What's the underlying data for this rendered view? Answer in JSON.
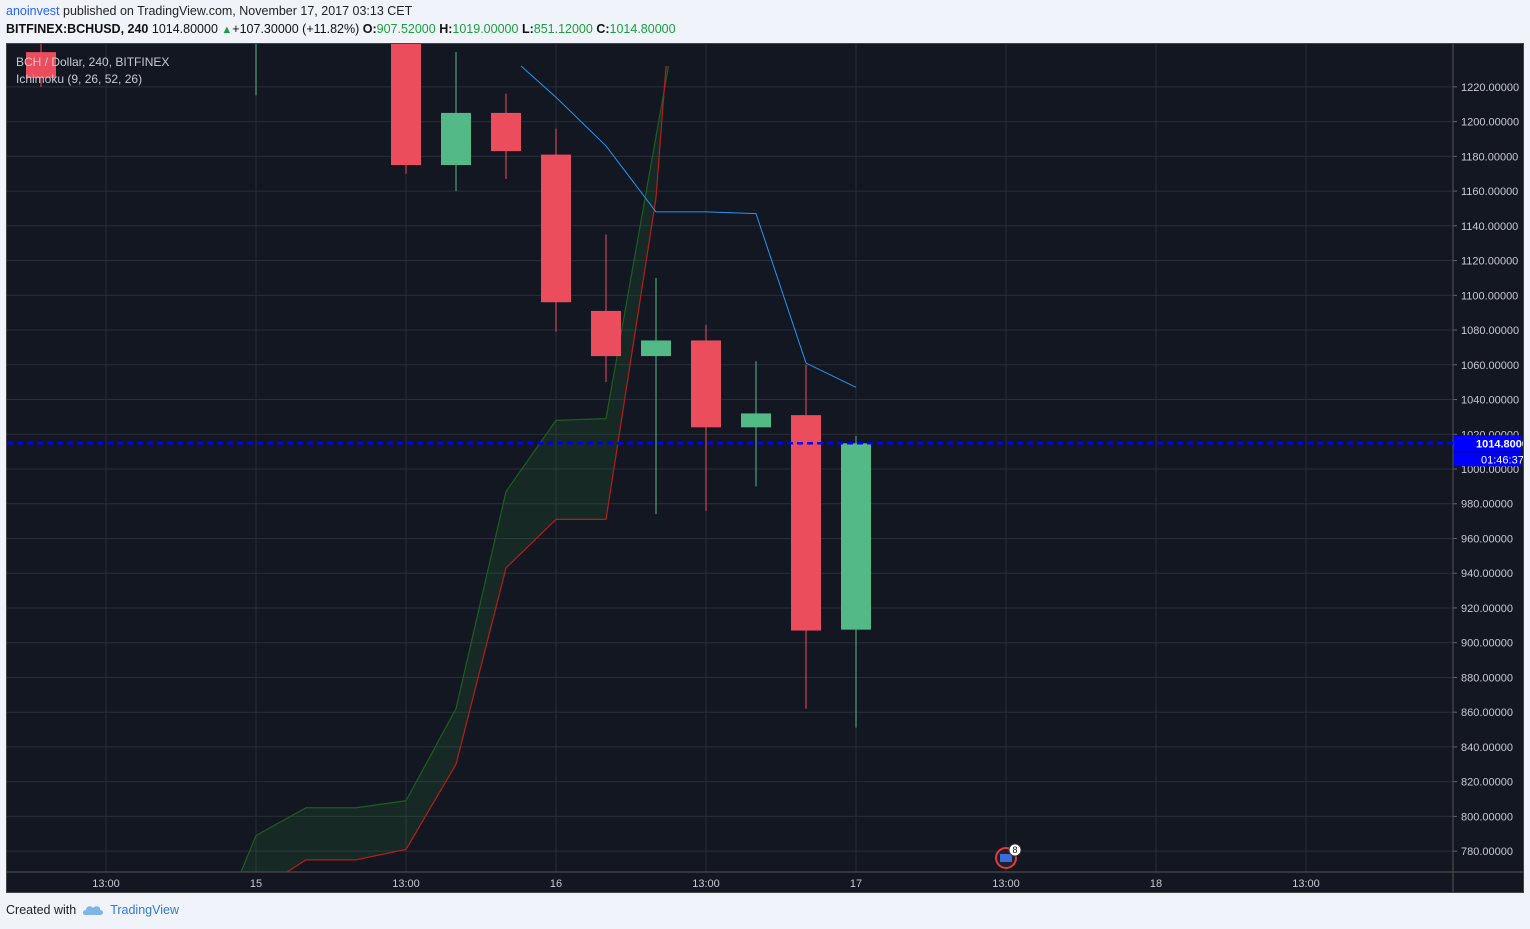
{
  "header": {
    "publisher": "anoinvest",
    "published_text": " published on TradingView.com, November 17, 2017 03:13 CET",
    "symbol": "BITFINEX:BCHUSD, 240",
    "last": "1014.80000",
    "change": "+107.30000 (+11.82%)",
    "o_label": "O:",
    "o_value": "907.52000",
    "h_label": "H:",
    "h_value": "1019.00000",
    "l_label": "L:",
    "l_value": "851.12000",
    "c_label": "C:",
    "c_value": "1014.80000"
  },
  "legend": {
    "series": "BCH / Dollar, 240, BITFINEX",
    "indicator": "Ichimoku (9, 26, 52, 26)"
  },
  "footer": {
    "created_with": "Created with",
    "brand": "TradingView"
  },
  "colors": {
    "background": "#131722",
    "up": "#53b987",
    "down": "#eb4d5c",
    "grid": "#2a2e39",
    "price_line": "#0000ff",
    "kijun": "#2196f3",
    "span_a": "#1b5e20",
    "span_b": "#b71c1c"
  },
  "chart_data": {
    "type": "candlestick",
    "ylim": [
      768,
      1232
    ],
    "yticks": [
      780,
      800,
      820,
      840,
      860,
      880,
      900,
      920,
      940,
      960,
      980,
      1000,
      1020,
      1040,
      1060,
      1080,
      1100,
      1120,
      1140,
      1160,
      1180,
      1200,
      1220
    ],
    "x_labels": [
      {
        "label": "13:00",
        "slot": -3
      },
      {
        "label": "15",
        "slot": 0
      },
      {
        "label": "13:00",
        "slot": 3
      },
      {
        "label": "16",
        "slot": 6
      },
      {
        "label": "13:00",
        "slot": 9
      },
      {
        "label": "17",
        "slot": 12
      },
      {
        "label": "13:00",
        "slot": 15
      },
      {
        "label": "18",
        "slot": 18
      },
      {
        "label": "13:00",
        "slot": 21
      }
    ],
    "candles": [
      {
        "slot": -4.3,
        "o": 1240,
        "h": 1260,
        "l": 1220,
        "c": 1225
      },
      {
        "slot": 0,
        "o": 1250,
        "h": 1260,
        "l": 1215,
        "c": 1255
      },
      {
        "slot": 3,
        "o": 1255,
        "h": 1270,
        "l": 1170,
        "c": 1175
      },
      {
        "slot": 4,
        "o": 1175,
        "h": 1240,
        "l": 1160,
        "c": 1205
      },
      {
        "slot": 5,
        "o": 1205,
        "h": 1216,
        "l": 1167,
        "c": 1183
      },
      {
        "slot": 6,
        "o": 1181,
        "h": 1196,
        "l": 1079,
        "c": 1096
      },
      {
        "slot": 7,
        "o": 1091,
        "h": 1135,
        "l": 1050,
        "c": 1065
      },
      {
        "slot": 8,
        "o": 1065,
        "h": 1110,
        "l": 974,
        "c": 1074
      },
      {
        "slot": 9,
        "o": 1074,
        "h": 1083,
        "l": 976,
        "c": 1024
      },
      {
        "slot": 10,
        "o": 1024,
        "h": 1062,
        "l": 990,
        "c": 1032
      },
      {
        "slot": 11,
        "o": 1031,
        "h": 1060,
        "l": 862,
        "c": 907
      },
      {
        "slot": 12,
        "o": 907.52,
        "h": 1019,
        "l": 851.12,
        "c": 1014.8
      }
    ],
    "kijun": [
      [
        5.3,
        1232
      ],
      [
        6,
        1214
      ],
      [
        7,
        1186
      ],
      [
        8,
        1148
      ],
      [
        9,
        1148
      ],
      [
        10,
        1147
      ],
      [
        11,
        1061
      ],
      [
        12,
        1047
      ]
    ],
    "senkou_a": [
      [
        -0.3,
        768
      ],
      [
        0,
        789
      ],
      [
        1,
        805
      ],
      [
        2,
        805
      ],
      [
        3,
        809
      ],
      [
        4,
        862
      ],
      [
        5,
        987
      ],
      [
        6,
        1028
      ],
      [
        7,
        1029
      ],
      [
        8.25,
        1232
      ]
    ],
    "senkou_b": [
      [
        0.4,
        764
      ],
      [
        1,
        775
      ],
      [
        2,
        775
      ],
      [
        3,
        781
      ],
      [
        4,
        830
      ],
      [
        5,
        943
      ],
      [
        6,
        971
      ],
      [
        7,
        971
      ],
      [
        8,
        1156
      ],
      [
        8.2,
        1232
      ]
    ],
    "current_price": 1014.8,
    "current_price_label": "1014.80000",
    "countdown": "01:46:37",
    "event_badge": "8"
  }
}
